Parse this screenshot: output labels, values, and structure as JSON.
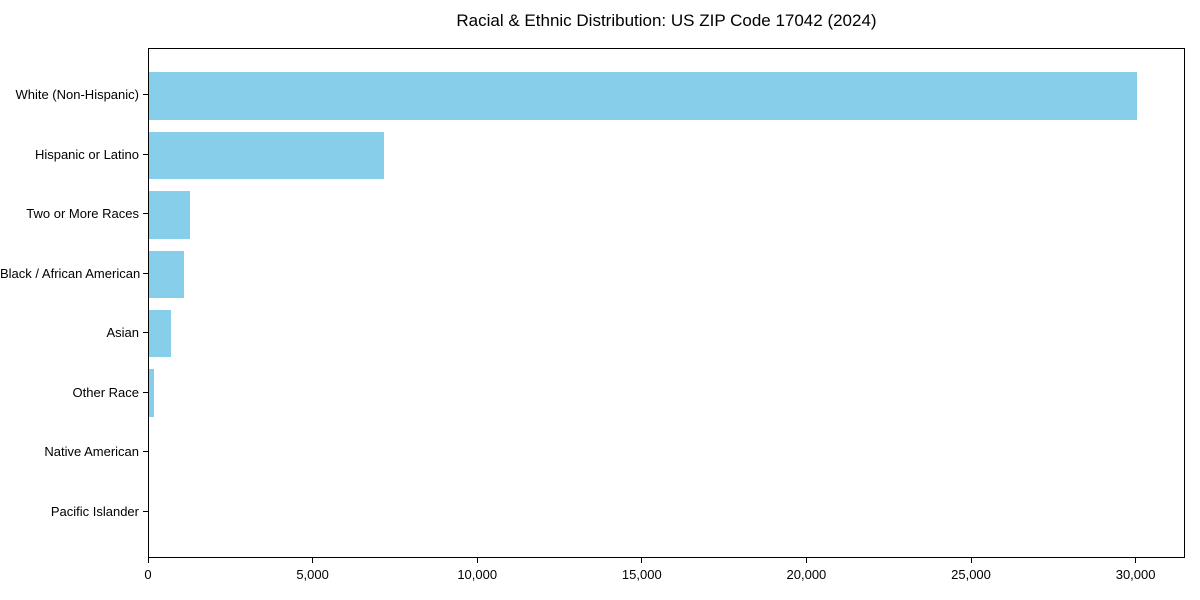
{
  "chart_data": {
    "type": "bar",
    "orientation": "horizontal",
    "title": "Racial & Ethnic Distribution: US ZIP Code 17042 (2024)",
    "categories": [
      "White (Non-Hispanic)",
      "Hispanic or Latino",
      "Two or More Races",
      "Black / African American",
      "Asian",
      "Other Race",
      "Native American",
      "Pacific Islander"
    ],
    "values": [
      30000,
      7130,
      1250,
      1050,
      670,
      160,
      0,
      0
    ],
    "xlabel": "",
    "ylabel": "",
    "xlim": [
      0,
      31500
    ],
    "x_ticks": [
      0,
      5000,
      10000,
      15000,
      20000,
      25000,
      30000
    ],
    "x_tick_labels": [
      "0",
      "5,000",
      "10,000",
      "15,000",
      "20,000",
      "25,000",
      "30,000"
    ],
    "bar_color": "#87ceeb",
    "frame_color": "#000000",
    "background_color": "#ffffff",
    "grid": false,
    "legend": null,
    "bar_relative_height": 0.8
  }
}
